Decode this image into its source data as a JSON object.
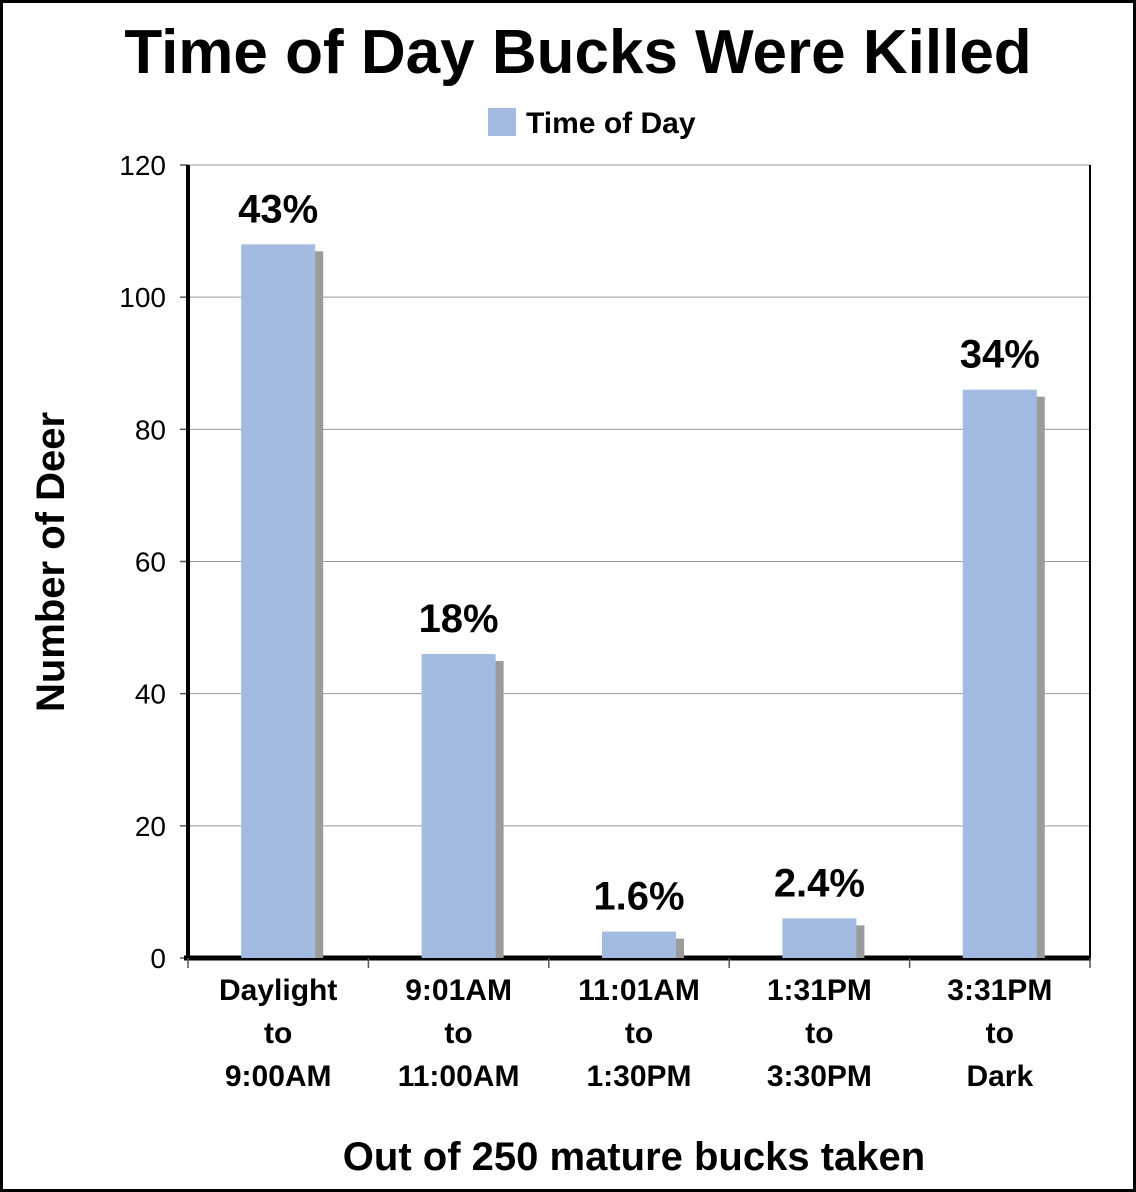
{
  "chart_data": {
    "type": "bar",
    "title": "Time of Day Bucks Were Killed",
    "xlabel": "Out of 250 mature bucks taken",
    "ylabel": "Number of Deer",
    "ylim": [
      0,
      120
    ],
    "yticks": [
      "0",
      "20",
      "40",
      "60",
      "80",
      "100",
      "120"
    ],
    "grid": true,
    "legend_position": "top",
    "categories": [
      [
        "Daylight",
        "to",
        "9:00AM"
      ],
      [
        "9:01AM",
        "to",
        "11:00AM"
      ],
      [
        "11:01AM",
        "to",
        "1:30PM"
      ],
      [
        "1:31PM",
        "to",
        "3:30PM"
      ],
      [
        "3:31PM",
        "to",
        "Dark"
      ]
    ],
    "series": [
      {
        "name": "Time of Day",
        "color": "#a3bbe0",
        "values": [
          108,
          46,
          4,
          6,
          86
        ],
        "labels": [
          "43%",
          "18%",
          "1.6%",
          "2.4%",
          "34%"
        ]
      }
    ]
  }
}
